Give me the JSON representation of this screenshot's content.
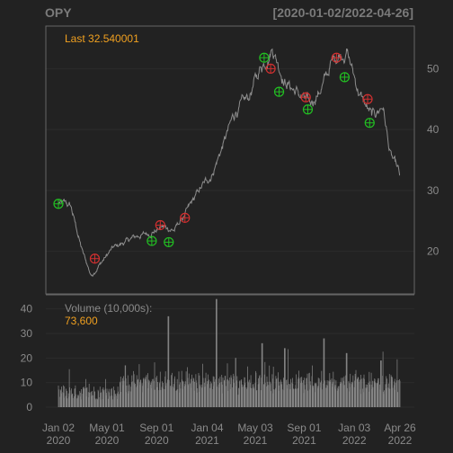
{
  "chart_data": {
    "type": "line",
    "title": "OPY",
    "date_range": "[2020-01-02/2022-04-26]",
    "colors": {
      "background": "#222222",
      "price_line": "#8c8c8c",
      "volume_bars": "#8c8c8c",
      "buy_marker": "#22c022",
      "sell_marker": "#d03030",
      "annotation": "#f0a020",
      "grid": "#2c2c2c",
      "frame": "#666666"
    },
    "price_panel": {
      "last_label": "Last 32.540001",
      "ylim": [
        13,
        57
      ],
      "yticks": [
        20,
        30,
        40,
        50
      ],
      "grid": true,
      "series": {
        "x": [
          "2020-01-02",
          "2020-02-01",
          "2020-03-01",
          "2020-03-23",
          "2020-04-15",
          "2020-05-15",
          "2020-06-15",
          "2020-07-15",
          "2020-08-15",
          "2020-09-15",
          "2020-10-15",
          "2020-11-15",
          "2020-12-15",
          "2021-01-15",
          "2021-02-15",
          "2021-03-15",
          "2021-04-15",
          "2021-05-15",
          "2021-06-15",
          "2021-07-15",
          "2021-08-15",
          "2021-09-15",
          "2021-10-15",
          "2021-11-15",
          "2021-12-15",
          "2022-01-15",
          "2022-02-15",
          "2022-03-15",
          "2022-04-01",
          "2022-04-26"
        ],
        "y": [
          28,
          27.5,
          20,
          16,
          18,
          20.5,
          21.5,
          22.5,
          23,
          24,
          23.5,
          26.5,
          30,
          32.5,
          38,
          43,
          45,
          50,
          53.5,
          48,
          46,
          44,
          47,
          52,
          53,
          46,
          42,
          44,
          36,
          32.54
        ]
      },
      "buy_signals": [
        {
          "x": "2020-01-02",
          "y": 27.8
        },
        {
          "x": "2020-08-20",
          "y": 21.7
        },
        {
          "x": "2020-10-01",
          "y": 21.5
        },
        {
          "x": "2021-05-25",
          "y": 51.8
        },
        {
          "x": "2021-07-01",
          "y": 46.2
        },
        {
          "x": "2021-09-10",
          "y": 43.3
        },
        {
          "x": "2021-12-10",
          "y": 48.6
        },
        {
          "x": "2022-02-10",
          "y": 41.1
        }
      ],
      "sell_signals": [
        {
          "x": "2020-04-01",
          "y": 18.8
        },
        {
          "x": "2020-09-10",
          "y": 24.3
        },
        {
          "x": "2020-11-10",
          "y": 25.5
        },
        {
          "x": "2021-06-10",
          "y": 50.0
        },
        {
          "x": "2021-09-05",
          "y": 45.3
        },
        {
          "x": "2021-11-20",
          "y": 51.8
        },
        {
          "x": "2022-02-05",
          "y": 45.0
        }
      ]
    },
    "volume_panel": {
      "label": "Volume (10,000s):",
      "last_value": "73,600",
      "ylim": [
        0,
        45
      ],
      "yticks": [
        0,
        10,
        20,
        30,
        40
      ],
      "peaks": [
        {
          "x": "2020-06-15",
          "y": 17
        },
        {
          "x": "2020-09-30",
          "y": 37
        },
        {
          "x": "2021-01-27",
          "y": 44
        },
        {
          "x": "2021-03-15",
          "y": 20
        },
        {
          "x": "2021-05-20",
          "y": 26
        },
        {
          "x": "2021-07-15",
          "y": 24
        },
        {
          "x": "2021-10-20",
          "y": 28
        },
        {
          "x": "2021-12-15",
          "y": 22
        },
        {
          "x": "2022-03-10",
          "y": 19
        }
      ]
    },
    "x_ticks": [
      {
        "date": "2020-01-02",
        "line1": "Jan 02",
        "line2": "2020"
      },
      {
        "date": "2020-05-01",
        "line1": "May 01",
        "line2": "2020"
      },
      {
        "date": "2020-09-01",
        "line1": "Sep 01",
        "line2": "2020"
      },
      {
        "date": "2021-01-04",
        "line1": "Jan 04",
        "line2": "2021"
      },
      {
        "date": "2021-05-03",
        "line1": "May 03",
        "line2": "2021"
      },
      {
        "date": "2021-09-01",
        "line1": "Sep 01",
        "line2": "2021"
      },
      {
        "date": "2022-01-03",
        "line1": "Jan 03",
        "line2": "2022"
      },
      {
        "date": "2022-04-26",
        "line1": "Apr 26",
        "line2": "2022"
      }
    ]
  }
}
